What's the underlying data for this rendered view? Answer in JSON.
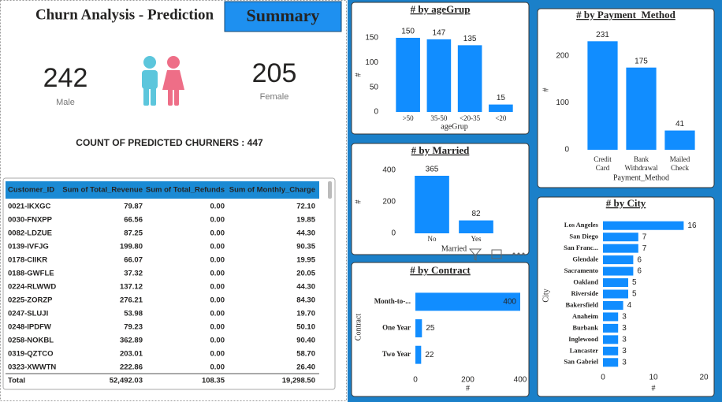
{
  "header": {
    "title": "Churn Analysis - Prediction",
    "button": "Summary"
  },
  "kpis": {
    "male": {
      "value": 242,
      "label": "Male"
    },
    "female": {
      "value": 205,
      "label": "Female"
    },
    "churners": {
      "label": "COUNT OF PREDICTED CHURNERS :",
      "value": 447
    }
  },
  "table": {
    "columns": [
      "Customer_ID",
      "Sum of Total_Revenue",
      "Sum of Total_Refunds",
      "Sum of Monthly_Charge"
    ],
    "rows": [
      [
        "0021-IKXGC",
        "79.87",
        "0.00",
        "72.10"
      ],
      [
        "0030-FNXPP",
        "66.56",
        "0.00",
        "19.85"
      ],
      [
        "0082-LDZUE",
        "87.25",
        "0.00",
        "44.30"
      ],
      [
        "0139-IVFJG",
        "199.80",
        "0.00",
        "90.35"
      ],
      [
        "0178-CIIKR",
        "66.07",
        "0.00",
        "19.95"
      ],
      [
        "0188-GWFLE",
        "37.32",
        "0.00",
        "20.05"
      ],
      [
        "0224-RLWWD",
        "137.12",
        "0.00",
        "44.30"
      ],
      [
        "0225-ZORZP",
        "276.21",
        "0.00",
        "84.30"
      ],
      [
        "0247-SLUJI",
        "53.98",
        "0.00",
        "19.70"
      ],
      [
        "0248-IPDFW",
        "79.23",
        "0.00",
        "50.10"
      ],
      [
        "0258-NOKBL",
        "362.89",
        "0.00",
        "90.40"
      ],
      [
        "0319-QZTCO",
        "203.01",
        "0.00",
        "58.70"
      ],
      [
        "0323-XWWTN",
        "222.86",
        "0.00",
        "26.40"
      ]
    ],
    "total": [
      "Total",
      "52,492.03",
      "108.35",
      "19,298.50"
    ]
  },
  "chart_data": [
    {
      "type": "bar",
      "orientation": "vertical",
      "title": "# by ageGrup",
      "x_label": "ageGrup",
      "y_label": "#",
      "categories": [
        ">50",
        "35-50",
        "<20-35",
        "<20"
      ],
      "values": [
        150,
        147,
        135,
        15
      ],
      "color": "#118dff",
      "ylim": [
        0,
        160
      ],
      "yticks": [
        0,
        50,
        100,
        150
      ],
      "grid": false
    },
    {
      "type": "bar",
      "orientation": "vertical",
      "title": "# by Married",
      "x_label": "Married",
      "y_label": "#",
      "categories": [
        "No",
        "Yes"
      ],
      "values": [
        365,
        82
      ],
      "color": "#118dff",
      "ylim": [
        0,
        440
      ],
      "yticks": [
        0,
        200,
        400
      ],
      "grid": false
    },
    {
      "type": "bar",
      "orientation": "horizontal",
      "title": "# by Contract",
      "x_label": "#",
      "y_label": "Contract",
      "categories": [
        "Month-to-...",
        "One Year",
        "Two Year"
      ],
      "values": [
        400,
        25,
        22
      ],
      "color": "#118dff",
      "xlim": [
        0,
        400
      ],
      "xticks": [
        0,
        200,
        400
      ],
      "grid": false
    },
    {
      "type": "bar",
      "orientation": "vertical",
      "title": "# by Payment_Method",
      "x_label": "Payment_Method",
      "y_label": "#",
      "categories": [
        "Credit Card",
        "Bank Withdrawal",
        "Mailed Check"
      ],
      "values": [
        231,
        175,
        41
      ],
      "color": "#118dff",
      "ylim": [
        0,
        250
      ],
      "yticks": [
        0,
        100,
        200
      ],
      "grid": false
    },
    {
      "type": "bar",
      "orientation": "horizontal",
      "title": "# by City",
      "x_label": "#",
      "y_label": "City",
      "categories": [
        "Los Angeles",
        "San Diego",
        "San Franc...",
        "Glendale",
        "Sacramento",
        "Oakland",
        "Riverside",
        "Bakersfield",
        "Anaheim",
        "Burbank",
        "Inglewood",
        "Lancaster",
        "San Gabriel"
      ],
      "values": [
        16,
        7,
        7,
        6,
        6,
        5,
        5,
        4,
        3,
        3,
        3,
        3,
        3
      ],
      "color": "#118dff",
      "xlim": [
        0,
        20
      ],
      "xticks": [
        0,
        10,
        20
      ],
      "grid": false
    }
  ]
}
